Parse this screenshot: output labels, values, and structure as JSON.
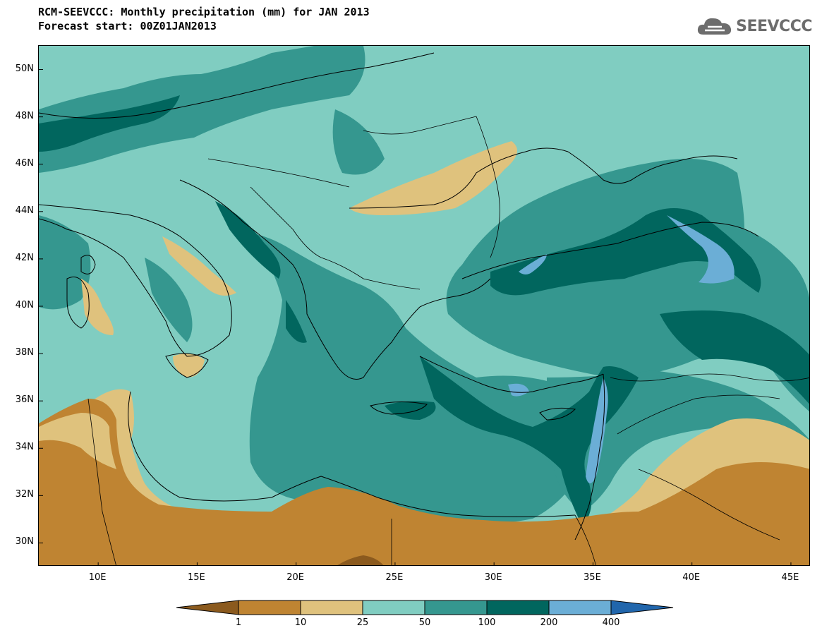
{
  "header": {
    "title_line1": "RCM-SEEVCCC: Monthly precipitation (mm) for JAN 2013",
    "title_line2": "Forecast start: 00Z01JAN2013",
    "logo_text": "SEEVCCC"
  },
  "chart_data": {
    "type": "heatmap",
    "variable": "Monthly precipitation",
    "units": "mm",
    "period": "JAN 2013",
    "forecast_start": "00Z01JAN2013",
    "lon_range": [
      7,
      46
    ],
    "lat_range": [
      29,
      51
    ],
    "lat_ticks": [
      "50N",
      "48N",
      "46N",
      "44N",
      "42N",
      "40N",
      "38N",
      "36N",
      "34N",
      "32N",
      "30N"
    ],
    "lat_values": [
      50,
      48,
      46,
      44,
      42,
      40,
      38,
      36,
      34,
      32,
      30
    ],
    "lon_ticks": [
      "10E",
      "15E",
      "20E",
      "25E",
      "30E",
      "35E",
      "40E",
      "45E"
    ],
    "lon_values": [
      10,
      15,
      20,
      25,
      30,
      35,
      40,
      45
    ],
    "colorbar": {
      "levels": [
        "1",
        "10",
        "25",
        "50",
        "100",
        "200",
        "400"
      ],
      "colors": [
        "#8b5a1e",
        "#bf8432",
        "#dfc27d",
        "#80cdc1",
        "#35978f",
        "#01665e",
        "#6baed6",
        "#2166ac"
      ]
    }
  }
}
